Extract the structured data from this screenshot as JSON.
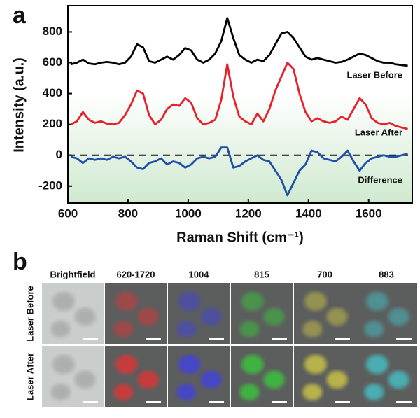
{
  "panel_labels": [
    "a",
    "b"
  ],
  "chart_data": {
    "type": "line",
    "xlabel": "Raman Shift (cm⁻¹)",
    "ylabel": "Intensity (a.u.)",
    "x": [
      610,
      630,
      650,
      670,
      690,
      710,
      730,
      750,
      770,
      790,
      810,
      830,
      850,
      870,
      890,
      910,
      930,
      950,
      970,
      990,
      1010,
      1030,
      1050,
      1070,
      1090,
      1110,
      1130,
      1150,
      1170,
      1190,
      1210,
      1230,
      1250,
      1270,
      1290,
      1310,
      1330,
      1350,
      1370,
      1390,
      1410,
      1430,
      1450,
      1470,
      1490,
      1510,
      1530,
      1550,
      1570,
      1590,
      1610,
      1630,
      1650,
      1670,
      1690,
      1710,
      1730
    ],
    "series": [
      {
        "name": "Laser Before",
        "color": "#000000",
        "values": [
          590,
          600,
          620,
          595,
          590,
          600,
          605,
          600,
          590,
          600,
          640,
          720,
          700,
          610,
          600,
          620,
          640,
          620,
          650,
          695,
          680,
          620,
          600,
          620,
          660,
          740,
          890,
          760,
          650,
          620,
          600,
          620,
          610,
          650,
          720,
          790,
          800,
          760,
          700,
          640,
          620,
          630,
          620,
          610,
          600,
          605,
          620,
          640,
          660,
          650,
          630,
          610,
          600,
          600,
          590,
          585,
          580
        ]
      },
      {
        "name": "Laser After",
        "color": "#e8202a",
        "values": [
          200,
          220,
          280,
          230,
          210,
          220,
          205,
          200,
          210,
          260,
          330,
          420,
          400,
          260,
          200,
          230,
          300,
          330,
          320,
          370,
          340,
          240,
          200,
          210,
          230,
          360,
          590,
          380,
          250,
          220,
          200,
          270,
          220,
          300,
          420,
          510,
          600,
          560,
          400,
          280,
          220,
          240,
          220,
          210,
          220,
          250,
          230,
          300,
          370,
          330,
          240,
          210,
          200,
          210,
          190,
          180,
          170
        ]
      },
      {
        "name": "Difference",
        "color": "#1f4fa8",
        "values": [
          -10,
          -20,
          -50,
          -20,
          -30,
          -20,
          -30,
          -10,
          -20,
          -10,
          -40,
          -80,
          -90,
          -50,
          -40,
          -20,
          -60,
          -40,
          -50,
          -80,
          -60,
          -20,
          -10,
          -20,
          -10,
          50,
          50,
          -80,
          -70,
          -40,
          -20,
          0,
          -30,
          -40,
          -100,
          -160,
          -260,
          -180,
          -100,
          -60,
          30,
          20,
          -20,
          -30,
          -40,
          -10,
          30,
          -40,
          -100,
          -50,
          -20,
          -10,
          0,
          -10,
          -10,
          0,
          10
        ]
      }
    ],
    "xlim": [
      600,
      1745
    ],
    "ylim": [
      -310,
      970
    ],
    "xticks": [
      600,
      800,
      1000,
      1200,
      1400,
      1600
    ],
    "yticks": [
      -200,
      0,
      200,
      400,
      600,
      800
    ],
    "hline": 0
  },
  "panel_b": {
    "columns": [
      "Brightfield",
      "620-1720",
      "1004",
      "815",
      "700",
      "883"
    ],
    "rows": [
      "Laser Before",
      "Laser After"
    ]
  }
}
